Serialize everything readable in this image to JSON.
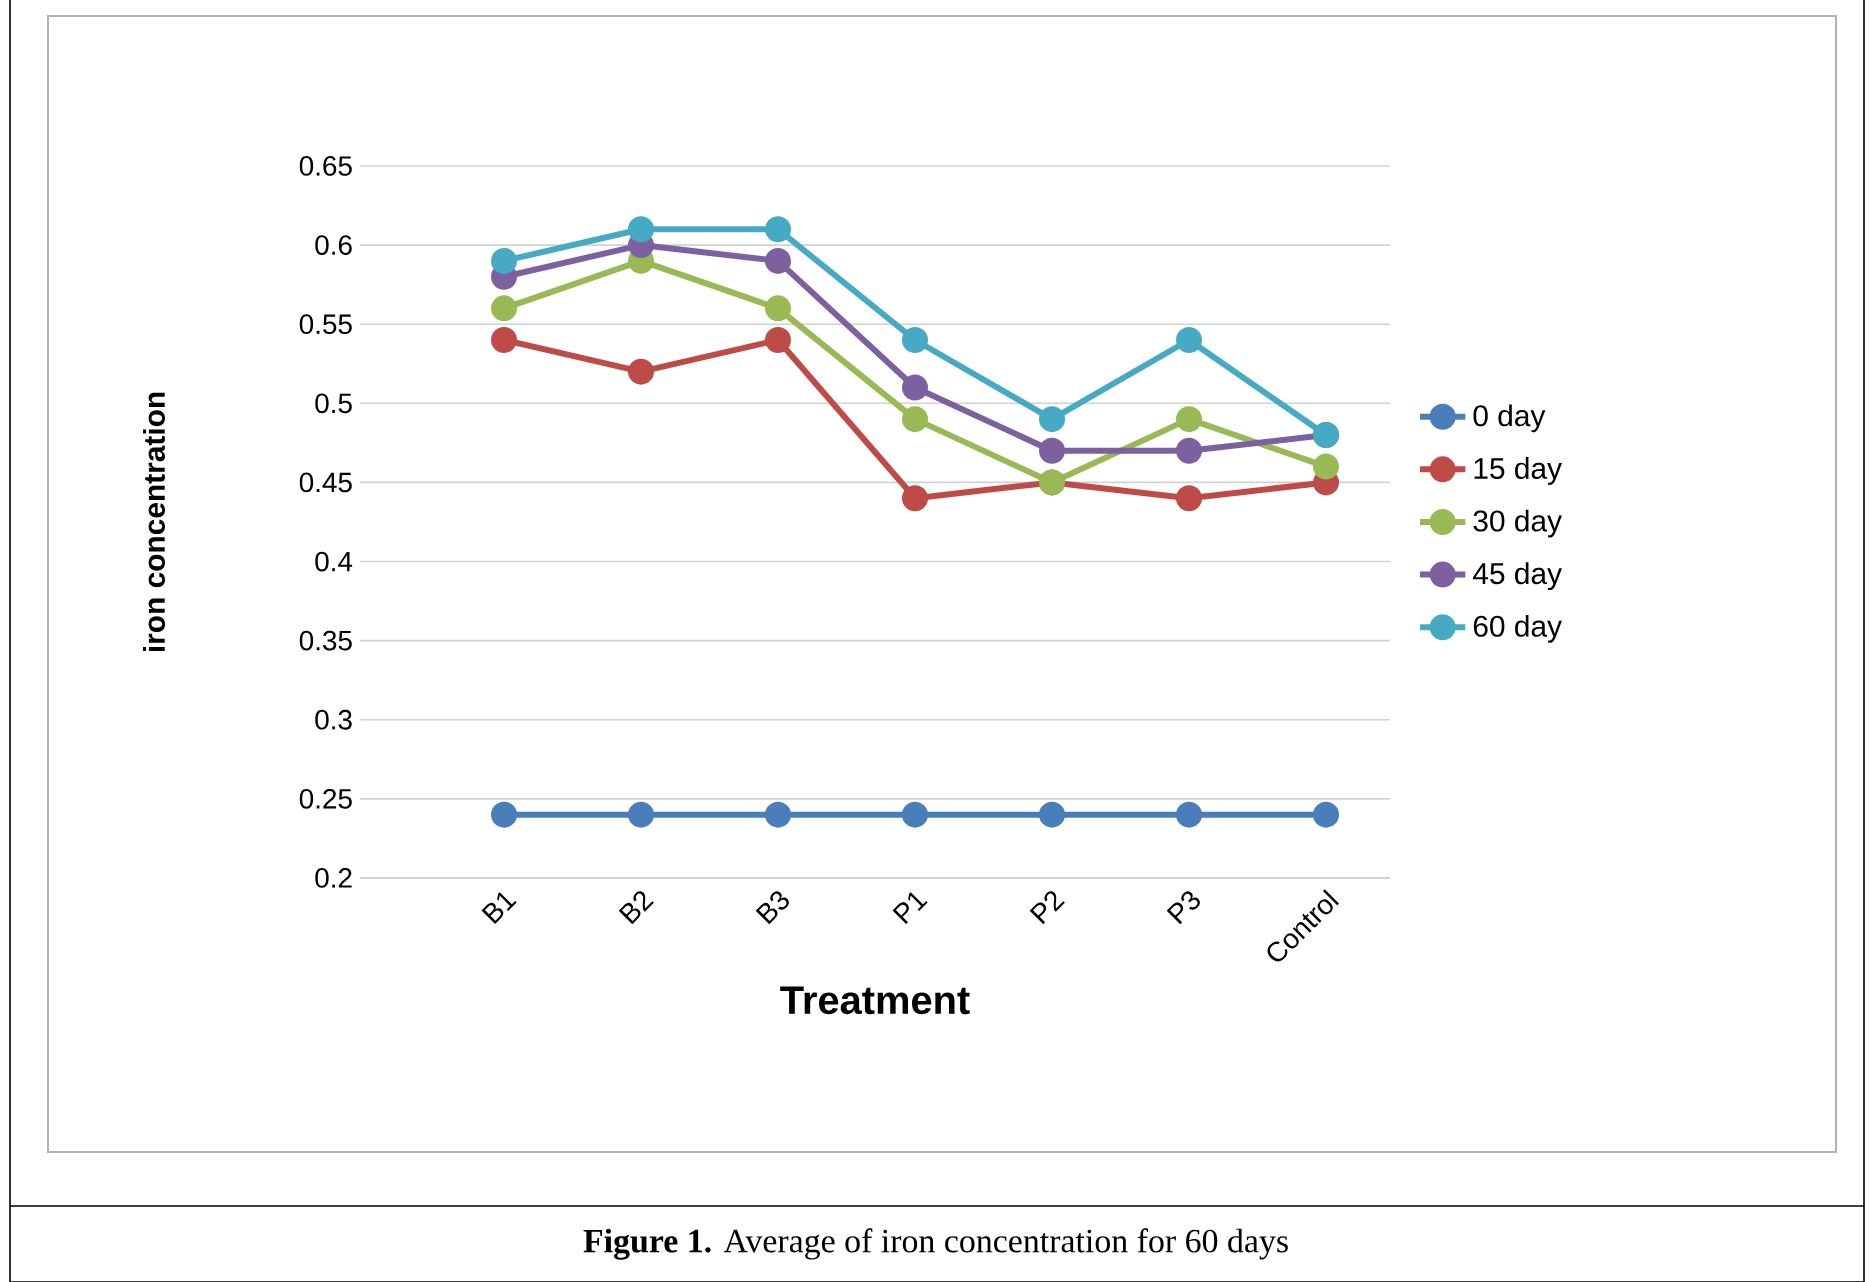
{
  "chart_data": {
    "type": "line",
    "xlabel": "Treatment",
    "ylabel": "iron concentration",
    "annotations": [
      "**Figure 1.** Average of iron concentration for 60 days"
    ],
    "categories": [
      "B1",
      "B2",
      "B3",
      "P1",
      "P2",
      "P3",
      "Control"
    ],
    "series": [
      {
        "name": "0 day",
        "color": "#4a7ebb",
        "values": [
          0.24,
          0.24,
          0.24,
          0.24,
          0.24,
          0.24,
          0.24
        ]
      },
      {
        "name": "15 day",
        "color": "#be4b48",
        "values": [
          0.54,
          0.52,
          0.54,
          0.44,
          0.45,
          0.44,
          0.45
        ]
      },
      {
        "name": "30 day",
        "color": "#98b954",
        "values": [
          0.56,
          0.59,
          0.56,
          0.49,
          0.45,
          0.49,
          0.46
        ]
      },
      {
        "name": "45 day",
        "color": "#7d60a0",
        "values": [
          0.58,
          0.6,
          0.59,
          0.51,
          0.47,
          0.47,
          0.48
        ]
      },
      {
        "name": "60 day",
        "color": "#46aac5",
        "values": [
          0.59,
          0.61,
          0.61,
          0.54,
          0.49,
          0.54,
          0.48
        ]
      }
    ],
    "ylim": [
      0.2,
      0.65
    ],
    "yticks": [
      0.2,
      0.25,
      0.3,
      0.35,
      0.4,
      0.45,
      0.5,
      0.55,
      0.6,
      0.65
    ],
    "grid": "y",
    "legend": "right",
    "marker": "circle",
    "line_style": "solid"
  }
}
